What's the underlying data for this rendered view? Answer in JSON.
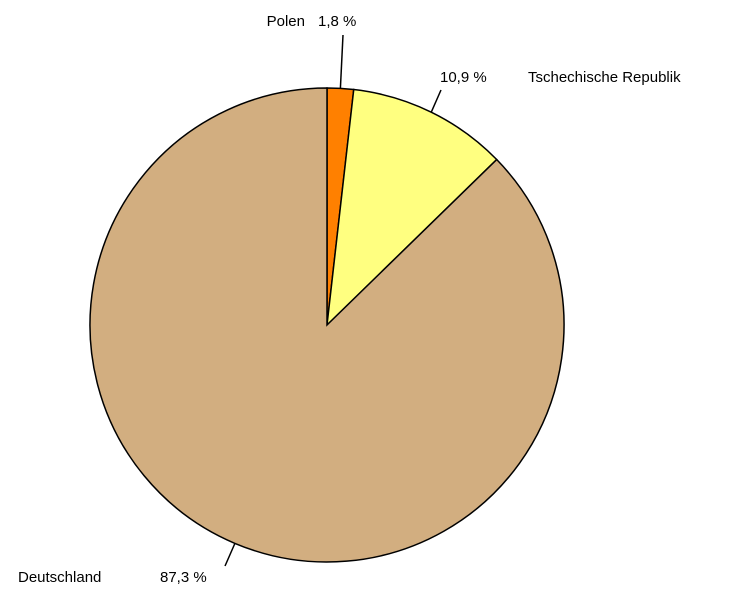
{
  "chart_data": {
    "type": "pie",
    "categories": [
      "Polen",
      "Tschechische Republik",
      "Deutschland"
    ],
    "values": [
      1.8,
      10.9,
      87.3
    ],
    "value_labels": [
      "1,8 %",
      "10,9 %",
      "87,3 %"
    ],
    "colors": [
      "#ff8000",
      "#ffff80",
      "#d2ae80"
    ]
  }
}
